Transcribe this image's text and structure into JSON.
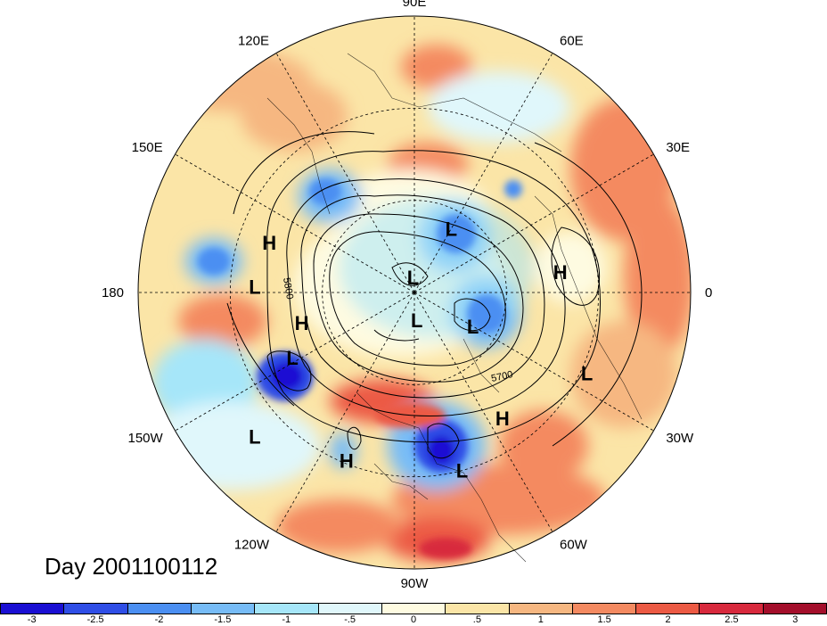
{
  "title": "Day 2001100112",
  "longitude_labels": [
    "90E",
    "60E",
    "30E",
    "0",
    "30W",
    "60W",
    "90W",
    "120W",
    "150W",
    "180",
    "150E",
    "120E"
  ],
  "centers": [
    {
      "type": "H",
      "lon": 161,
      "lat": 40
    },
    {
      "type": "L",
      "lon": 178,
      "lat": 38
    },
    {
      "type": "H",
      "lon": -165,
      "lat": 52
    },
    {
      "type": "L",
      "lon": -152,
      "lat": 45
    },
    {
      "type": "L",
      "lon": -138,
      "lat": 20
    },
    {
      "type": "H",
      "lon": -112,
      "lat": 31
    },
    {
      "type": "L",
      "lon": -75,
      "lat": 30
    },
    {
      "type": "H",
      "lon": -55,
      "lat": 40
    },
    {
      "type": "L",
      "lon": -25,
      "lat": 28
    },
    {
      "type": "H",
      "lon": 8,
      "lat": 42
    },
    {
      "type": "L",
      "lon": -85,
      "lat": 81
    },
    {
      "type": "L",
      "lon": -30,
      "lat": 68
    },
    {
      "type": "L",
      "lon": 60,
      "lat": 66
    },
    {
      "type": "L",
      "lon": 95,
      "lat": 85
    }
  ],
  "contour_labels": [
    "5800",
    "5700"
  ],
  "colorbar": {
    "colors": [
      "#1a0fd3",
      "#2f4ee6",
      "#4b8ff2",
      "#77bcf7",
      "#a6e6f9",
      "#e0f7fb",
      "#fefbe1",
      "#fbe5a7",
      "#f6b781",
      "#f48a61",
      "#ec5a44",
      "#d8293d",
      "#a40e2b"
    ],
    "labels": [
      "-3",
      "-2.5",
      "-2",
      "-1.5",
      "-1",
      "-.5",
      "0",
      ".5",
      "1",
      "1.5",
      "2",
      "2.5",
      "3"
    ]
  }
}
